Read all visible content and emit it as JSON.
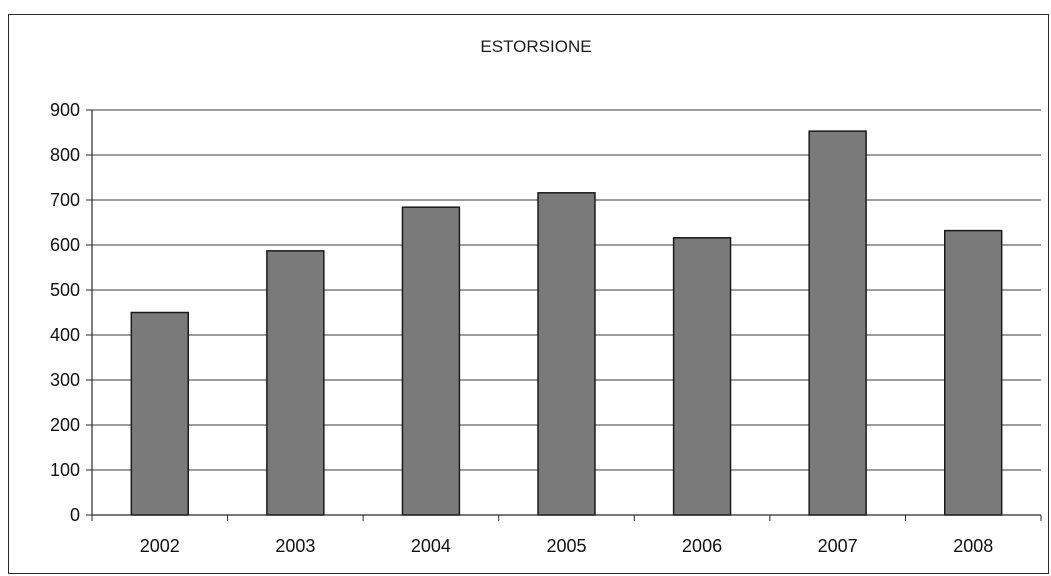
{
  "chart_data": {
    "type": "bar",
    "title": "ESTORSIONE",
    "xlabel": "",
    "ylabel": "",
    "categories": [
      "2002",
      "2003",
      "2004",
      "2005",
      "2006",
      "2007",
      "2008"
    ],
    "values": [
      450,
      587,
      684,
      716,
      616,
      853,
      632
    ],
    "ylim": [
      0,
      900
    ],
    "yticks": [
      0,
      100,
      200,
      300,
      400,
      500,
      600,
      700,
      800,
      900
    ],
    "grid": true,
    "legend": "none",
    "colors": {
      "bar": "#7a7a7a",
      "bar_edge": "#1a1a1a",
      "grid": "#3a3a3a",
      "axis": "#2a2a2a"
    }
  }
}
